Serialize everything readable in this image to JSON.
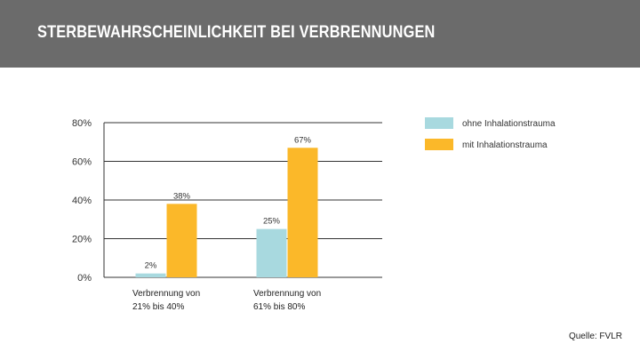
{
  "header": {
    "title": "STERBEWAHRSCHEINLICHKEIT BEI VERBRENNUNGEN"
  },
  "source": "Quelle: FVLR",
  "colors": {
    "header_bg": "#6b6b6b",
    "series_ohne": "#a8d9df",
    "series_mit": "#fbb829",
    "grid": "#333333"
  },
  "chart_data": {
    "type": "bar",
    "title": "",
    "xlabel": "",
    "ylabel": "",
    "ylim": [
      0,
      80
    ],
    "yticks": [
      0,
      20,
      40,
      60,
      80
    ],
    "ytick_labels": [
      "0%",
      "20%",
      "40%",
      "60%",
      "80%"
    ],
    "grid": true,
    "legend_position": "top-right",
    "categories": [
      [
        "Verbrennung von",
        "21% bis 40%"
      ],
      [
        "Verbrennung von",
        "61% bis 80%"
      ]
    ],
    "series": [
      {
        "name": "ohne Inhalationstrauma",
        "values": [
          2,
          25
        ],
        "labels": [
          "2%",
          "25%"
        ]
      },
      {
        "name": "mit Inhalationstrauma",
        "values": [
          38,
          67
        ],
        "labels": [
          "38%",
          "67%"
        ]
      }
    ]
  }
}
